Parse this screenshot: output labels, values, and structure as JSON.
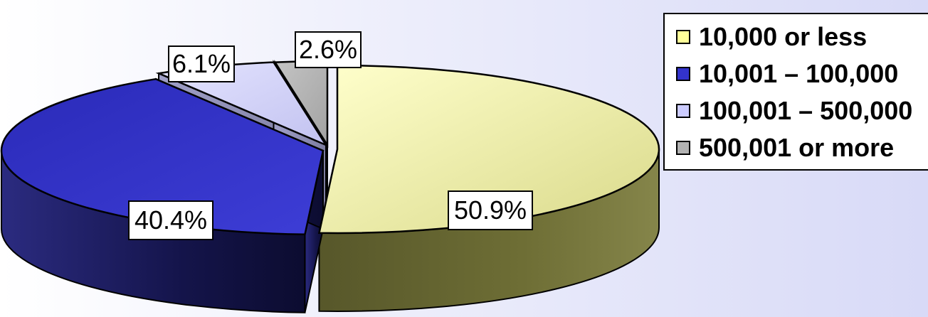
{
  "chart_data": {
    "type": "pie",
    "three_d": true,
    "categories": [
      "10,000 or less",
      "10,001 – 100,000",
      "100,001 – 500,000",
      "500,001 or more"
    ],
    "values": [
      50.9,
      40.4,
      6.1,
      2.6
    ],
    "data_labels": [
      "50.9%",
      "40.4%",
      "6.1%",
      "2.6%"
    ],
    "colors": {
      "top": [
        "#ffff99",
        "#3333cc",
        "#ccccff",
        "#b2b2b2"
      ],
      "side": [
        "#6e6e35",
        "#1a1a5e",
        "#8c8cb0",
        "#7a7a7a"
      ]
    },
    "legend": {
      "position": "right",
      "entries": [
        "10,000 or less",
        "10,001 – 100,000",
        "100,001 – 500,000",
        "500,001 or more"
      ]
    }
  }
}
